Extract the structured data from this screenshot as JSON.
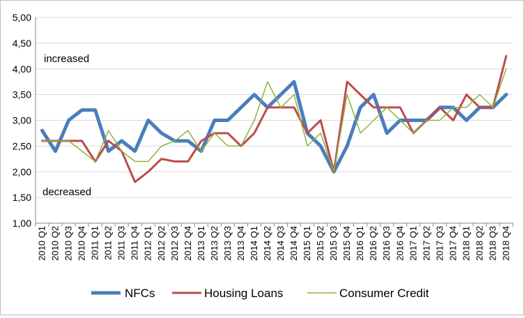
{
  "chart_data": {
    "type": "line",
    "title": "",
    "xlabel": "",
    "ylabel": "",
    "ylim": [
      1.0,
      5.0
    ],
    "yticks": [
      "1,00",
      "1,50",
      "2,00",
      "2,50",
      "3,00",
      "3,50",
      "4,00",
      "4,50",
      "5,00"
    ],
    "ytick_values": [
      1.0,
      1.5,
      2.0,
      2.5,
      3.0,
      3.5,
      4.0,
      4.5,
      5.0
    ],
    "grid": "horizontal",
    "legend_position": "bottom",
    "annotations": {
      "upper": "increased",
      "lower": "decreased"
    },
    "categories": [
      "2010 Q1",
      "2010 Q2",
      "2010 Q3",
      "2010 Q4",
      "2011 Q1",
      "2011 Q2",
      "2011 Q3",
      "2011 Q4",
      "2012 Q1",
      "2012 Q2",
      "2012 Q3",
      "2012 Q4",
      "2013 Q1",
      "2013 Q2",
      "2013 Q3",
      "2013 Q4",
      "2014 Q1",
      "2014 Q2",
      "2014 Q3",
      "2014 Q4",
      "2015 Q1",
      "2015 Q2",
      "2015 Q3",
      "2015 Q4",
      "2016 Q1",
      "2016 Q2",
      "2016 Q3",
      "2016 Q4",
      "2017 Q1",
      "2017 Q2",
      "2017 Q3",
      "2017 Q4",
      "2018 Q1",
      "2018 Q2",
      "2018 Q3",
      "2018 Q4"
    ],
    "series": [
      {
        "name": "NFCs",
        "color": "#4a7ebb",
        "width": 5,
        "values": [
          2.8,
          2.4,
          3.0,
          3.2,
          3.2,
          2.4,
          2.6,
          2.4,
          3.0,
          2.75,
          2.6,
          2.6,
          2.4,
          3.0,
          3.0,
          3.25,
          3.5,
          3.25,
          3.5,
          3.75,
          2.75,
          2.5,
          2.0,
          2.5,
          3.25,
          3.5,
          2.75,
          3.0,
          3.0,
          3.0,
          3.25,
          3.25,
          3.0,
          3.25,
          3.25,
          3.5
        ]
      },
      {
        "name": "Housing Loans",
        "color": "#be4b48",
        "width": 3,
        "values": [
          2.6,
          2.6,
          2.6,
          2.6,
          2.2,
          2.6,
          2.4,
          1.8,
          2.0,
          2.25,
          2.2,
          2.2,
          2.6,
          2.75,
          2.75,
          2.5,
          2.75,
          3.25,
          3.25,
          3.25,
          2.75,
          3.0,
          2.0,
          3.75,
          3.5,
          3.25,
          3.25,
          3.25,
          2.75,
          3.0,
          3.25,
          3.0,
          3.5,
          3.25,
          3.25,
          4.25
        ]
      },
      {
        "name": "Consumer Credit",
        "color": "#8db33e",
        "width": 1.5,
        "values": [
          2.6,
          2.6,
          2.6,
          2.4,
          2.2,
          2.8,
          2.4,
          2.2,
          2.2,
          2.5,
          2.6,
          2.8,
          2.4,
          2.75,
          2.5,
          2.5,
          3.0,
          3.75,
          3.25,
          3.5,
          2.5,
          2.75,
          2.0,
          3.5,
          2.75,
          3.0,
          3.25,
          3.0,
          2.75,
          3.0,
          3.0,
          3.25,
          3.25,
          3.5,
          3.25,
          4.0
        ]
      }
    ]
  }
}
